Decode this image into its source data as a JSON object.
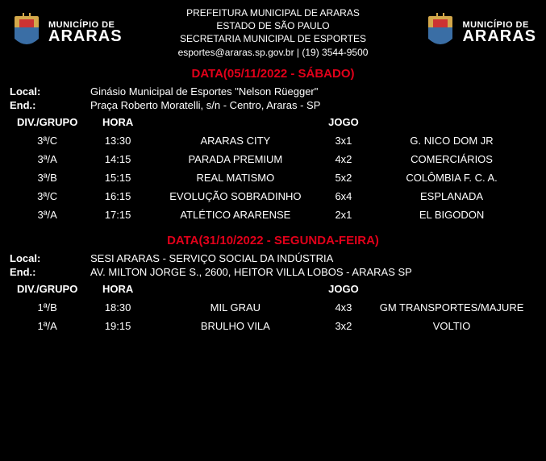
{
  "header": {
    "logo_line1": "MUNICÍPIO DE",
    "logo_line2": "ARARAS",
    "center_lines": [
      "PREFEITURA MUNICIPAL DE ARARAS",
      "ESTADO DE SÃO PAULO",
      "SECRETARIA MUNICIPAL DE ESPORTES",
      "esportes@araras.sp.gov.br | (19) 3544-9500"
    ]
  },
  "columns": {
    "dg": "DIV./GRUPO",
    "hora": "HORA",
    "jogo": "JOGO"
  },
  "sections": [
    {
      "date_heading": "DATA(05/11/2022 - SÁBADO)",
      "local_label": "Local:",
      "local": "Ginásio Municipal de Esportes \"Nelson Rüegger\"",
      "end_label": "End.:",
      "end": "Praça Roberto Moratelli, s/n - Centro, Araras - SP",
      "games": [
        {
          "dg": "3ª/C",
          "hora": "13:30",
          "home": "ARARAS CITY",
          "score": "3x1",
          "away": "G. NICO DOM JR"
        },
        {
          "dg": "3ª/A",
          "hora": "14:15",
          "home": "PARADA PREMIUM",
          "score": "4x2",
          "away": "COMERCIÁRIOS"
        },
        {
          "dg": "3ª/B",
          "hora": "15:15",
          "home": "REAL MATISMO",
          "score": "5x2",
          "away": "COLÔMBIA F. C. A."
        },
        {
          "dg": "3ª/C",
          "hora": "16:15",
          "home": "EVOLUÇÃO SOBRADINHO",
          "score": "6x4",
          "away": "ESPLANADA"
        },
        {
          "dg": "3ª/A",
          "hora": "17:15",
          "home": "ATLÉTICO ARARENSE",
          "score": "2x1",
          "away": "EL BIGODON"
        }
      ]
    },
    {
      "date_heading": "DATA(31/10/2022 - SEGUNDA-FEIRA)",
      "local_label": "Local:",
      "local": "SESI ARARAS - SERVIÇO SOCIAL DA INDÚSTRIA",
      "end_label": "End.:",
      "end": "AV. MILTON JORGE S., 2600, HEITOR VILLA LOBOS - ARARAS SP",
      "games": [
        {
          "dg": "1ª/B",
          "hora": "18:30",
          "home": "MIL GRAU",
          "score": "4x3",
          "away": "GM TRANSPORTES/MAJURE"
        },
        {
          "dg": "1ª/A",
          "hora": "19:15",
          "home": "BRULHO VILA",
          "score": "3x2",
          "away": "VOLTIO"
        }
      ]
    }
  ],
  "colors": {
    "bg": "#000000",
    "text": "#ffffff",
    "accent": "#e2001a",
    "crest_gold": "#d4a84b",
    "crest_red": "#c33",
    "crest_blue": "#3a6ea5"
  }
}
